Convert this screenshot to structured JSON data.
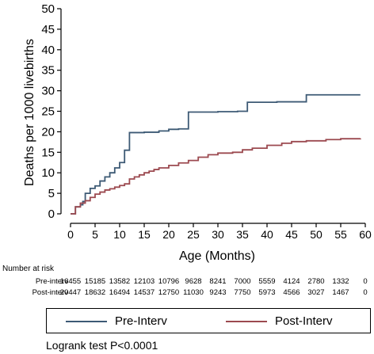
{
  "chart_data": {
    "type": "line",
    "step": true,
    "xlabel": "Age (Months)",
    "ylabel": "Deaths per 1000 livebirths",
    "xlim": [
      0,
      60
    ],
    "ylim": [
      0,
      50
    ],
    "xticks": [
      0,
      5,
      10,
      15,
      20,
      25,
      30,
      35,
      40,
      45,
      50,
      55,
      60
    ],
    "yticks": [
      0,
      5,
      10,
      15,
      20,
      25,
      30,
      35,
      40,
      45,
      50
    ],
    "grid": false,
    "series": [
      {
        "name": "Pre-Interv",
        "color": "#3d5a75",
        "points": [
          [
            0,
            0
          ],
          [
            1,
            0
          ],
          [
            1,
            1.7
          ],
          [
            2,
            2.2
          ],
          [
            2.5,
            3.0
          ],
          [
            3,
            5.0
          ],
          [
            4,
            6.2
          ],
          [
            5,
            6.8
          ],
          [
            6,
            8.0
          ],
          [
            7,
            9.0
          ],
          [
            8,
            10.0
          ],
          [
            9,
            11.2
          ],
          [
            10,
            12.5
          ],
          [
            11,
            15.5
          ],
          [
            12,
            19.8
          ],
          [
            15,
            19.9
          ],
          [
            18,
            20.2
          ],
          [
            20,
            20.6
          ],
          [
            22,
            20.7
          ],
          [
            24,
            24.8
          ],
          [
            30,
            24.9
          ],
          [
            34,
            25.0
          ],
          [
            36,
            27.2
          ],
          [
            42,
            27.3
          ],
          [
            48,
            29.0
          ],
          [
            59,
            29.0
          ]
        ]
      },
      {
        "name": "Post-Interv",
        "color": "#9c4a50",
        "points": [
          [
            0,
            0
          ],
          [
            1,
            0
          ],
          [
            1,
            1.7
          ],
          [
            2,
            2.6
          ],
          [
            3,
            3.2
          ],
          [
            4,
            4.0
          ],
          [
            5,
            4.8
          ],
          [
            6,
            5.3
          ],
          [
            7,
            5.8
          ],
          [
            8,
            6.1
          ],
          [
            9,
            6.5
          ],
          [
            10,
            6.9
          ],
          [
            11,
            7.3
          ],
          [
            12,
            8.5
          ],
          [
            13,
            9.0
          ],
          [
            14,
            9.5
          ],
          [
            15,
            10.0
          ],
          [
            16,
            10.4
          ],
          [
            17,
            10.8
          ],
          [
            18,
            11.2
          ],
          [
            20,
            11.8
          ],
          [
            22,
            12.4
          ],
          [
            24,
            13.0
          ],
          [
            26,
            13.8
          ],
          [
            28,
            14.4
          ],
          [
            30,
            14.8
          ],
          [
            33,
            15.0
          ],
          [
            35,
            15.6
          ],
          [
            37,
            16.0
          ],
          [
            40,
            16.7
          ],
          [
            43,
            17.2
          ],
          [
            45,
            17.6
          ],
          [
            48,
            17.8
          ],
          [
            52,
            18.1
          ],
          [
            55,
            18.3
          ],
          [
            59,
            18.4
          ]
        ]
      }
    ],
    "risk_table": {
      "title": "Number at risk",
      "rows": [
        {
          "label": "Pre-interv",
          "values": [
            "16455",
            "15185",
            "13582",
            "12103",
            "10796",
            "9628",
            "8241",
            "7000",
            "5559",
            "4124",
            "2780",
            "1332",
            "0"
          ]
        },
        {
          "label": "Post-interv",
          "values": [
            "20447",
            "18632",
            "16494",
            "14537",
            "12750",
            "11030",
            "9243",
            "7750",
            "5973",
            "4566",
            "3027",
            "1467",
            "0"
          ]
        }
      ]
    },
    "legend": {
      "placement": "bottom",
      "items": [
        {
          "label": "Pre-Interv",
          "color": "#3d5a75"
        },
        {
          "label": "Post-Interv",
          "color": "#9c4a50"
        }
      ]
    },
    "annotation": "Logrank test P<0.0001"
  }
}
